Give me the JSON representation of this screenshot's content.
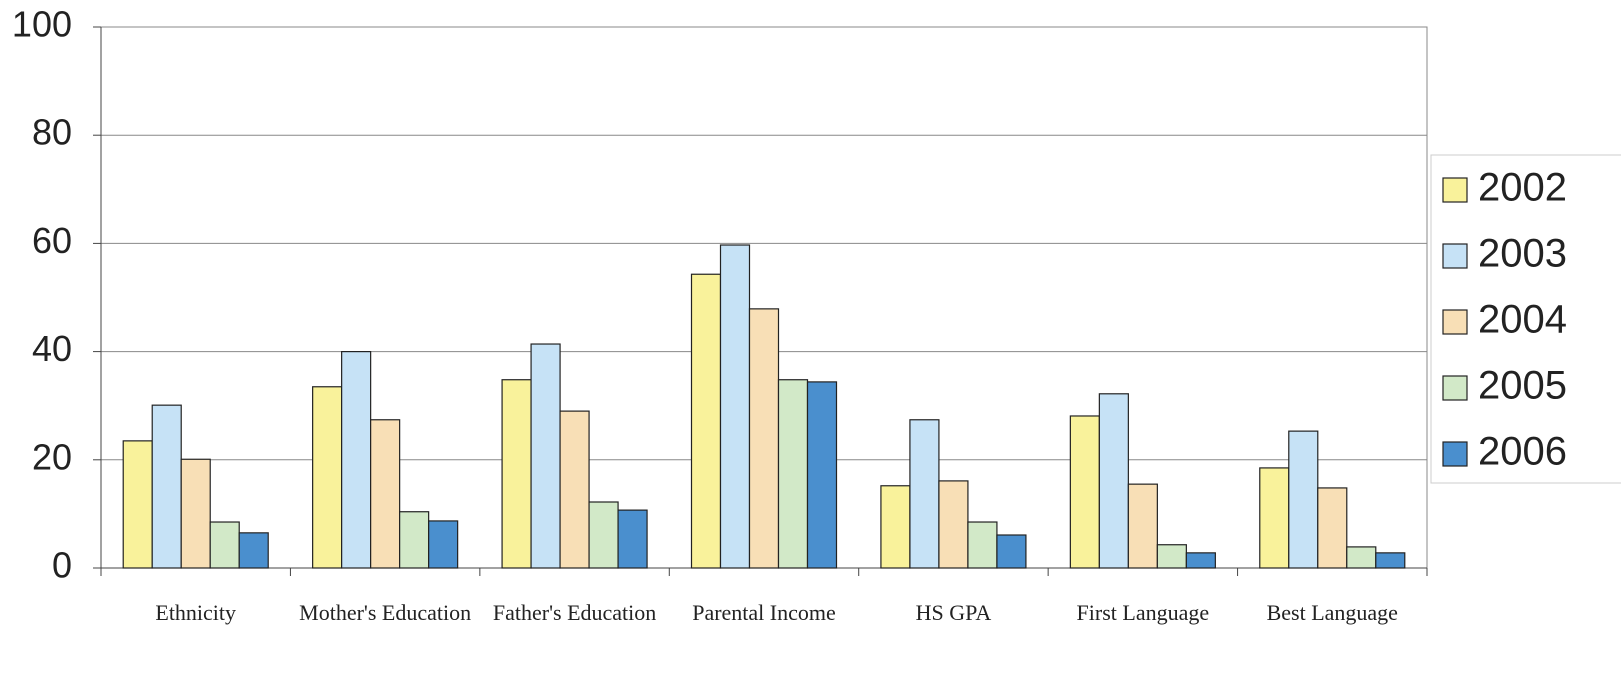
{
  "chart_data": {
    "type": "bar",
    "categories": [
      "Ethnicity",
      "Mother's Education",
      "Father's Education",
      "Parental Income",
      "HS GPA",
      "First Language",
      "Best Language"
    ],
    "series": [
      {
        "name": "2002",
        "color": "#f9f29b",
        "values": [
          23.5,
          33.5,
          34.8,
          54.3,
          15.2,
          28.1,
          18.5
        ]
      },
      {
        "name": "2003",
        "color": "#c6e2f6",
        "values": [
          30.1,
          40,
          41.4,
          59.7,
          27.4,
          32.2,
          25.3
        ]
      },
      {
        "name": "2004",
        "color": "#f8dfb6",
        "values": [
          20.1,
          27.4,
          29,
          47.9,
          16.1,
          15.5,
          14.8
        ]
      },
      {
        "name": "2005",
        "color": "#d2e9c8",
        "values": [
          8.5,
          10.4,
          12.2,
          34.8,
          8.5,
          4.3,
          3.9
        ]
      },
      {
        "name": "2006",
        "color": "#4a8fce",
        "values": [
          6.5,
          8.7,
          10.7,
          34.4,
          6.1,
          2.8,
          2.8
        ]
      }
    ],
    "ylim": [
      0,
      100
    ],
    "yticks": [
      0,
      20,
      40,
      60,
      80,
      100
    ],
    "grid": true,
    "legend": "right"
  }
}
